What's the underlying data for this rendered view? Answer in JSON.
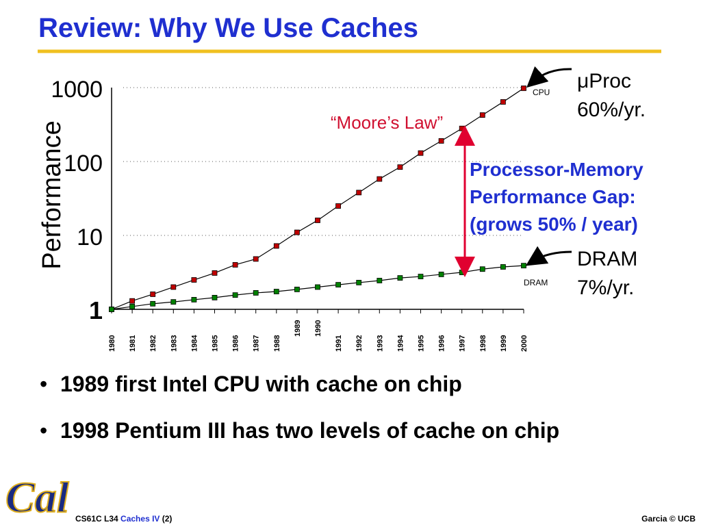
{
  "slide": {
    "title": "Review: Why We Use Caches",
    "bullets": [
      "1989 first Intel CPU with cache on chip",
      "1998 Pentium III has two levels of cache on chip"
    ],
    "footer_left": [
      "CS61C L34",
      "Caches IV",
      "(2)"
    ],
    "footer_right": "Garcia © UCB",
    "logo": "Cal"
  },
  "chart_data": {
    "type": "line",
    "y_label": "Performance",
    "categories": [
      "1980",
      "1981",
      "1982",
      "1983",
      "1984",
      "1985",
      "1986",
      "1987",
      "1988",
      "1989",
      "1990",
      "1991",
      "1992",
      "1993",
      "1994",
      "1995",
      "1996",
      "1997",
      "1998",
      "1999",
      "2000"
    ],
    "series": [
      {
        "name": "CPU",
        "color": "#c00000",
        "values": [
          1,
          1.3,
          1.6,
          2,
          2.5,
          3.1,
          4,
          4.8,
          7.2,
          11,
          16,
          25,
          38,
          58,
          84,
          130,
          190,
          280,
          425,
          640,
          980
        ]
      },
      {
        "name": "DRAM",
        "color": "#008000",
        "values": [
          1,
          1.09,
          1.19,
          1.26,
          1.35,
          1.44,
          1.56,
          1.67,
          1.74,
          1.86,
          2,
          2.15,
          2.3,
          2.45,
          2.66,
          2.78,
          2.97,
          3.16,
          3.5,
          3.75,
          3.9
        ]
      }
    ],
    "ylim": [
      1,
      1000
    ],
    "yticks": [
      1,
      10,
      100,
      1000
    ],
    "log_y": true,
    "grid": true,
    "annotations": {
      "cpu_rate": [
        "μProc",
        "60%/yr."
      ],
      "dram_rate": [
        "DRAM",
        "7%/yr."
      ],
      "moore": "“Moore’s Law”",
      "gap": [
        "Processor-Memory",
        "Performance Gap:",
        "(grows 50% / year)"
      ]
    }
  }
}
